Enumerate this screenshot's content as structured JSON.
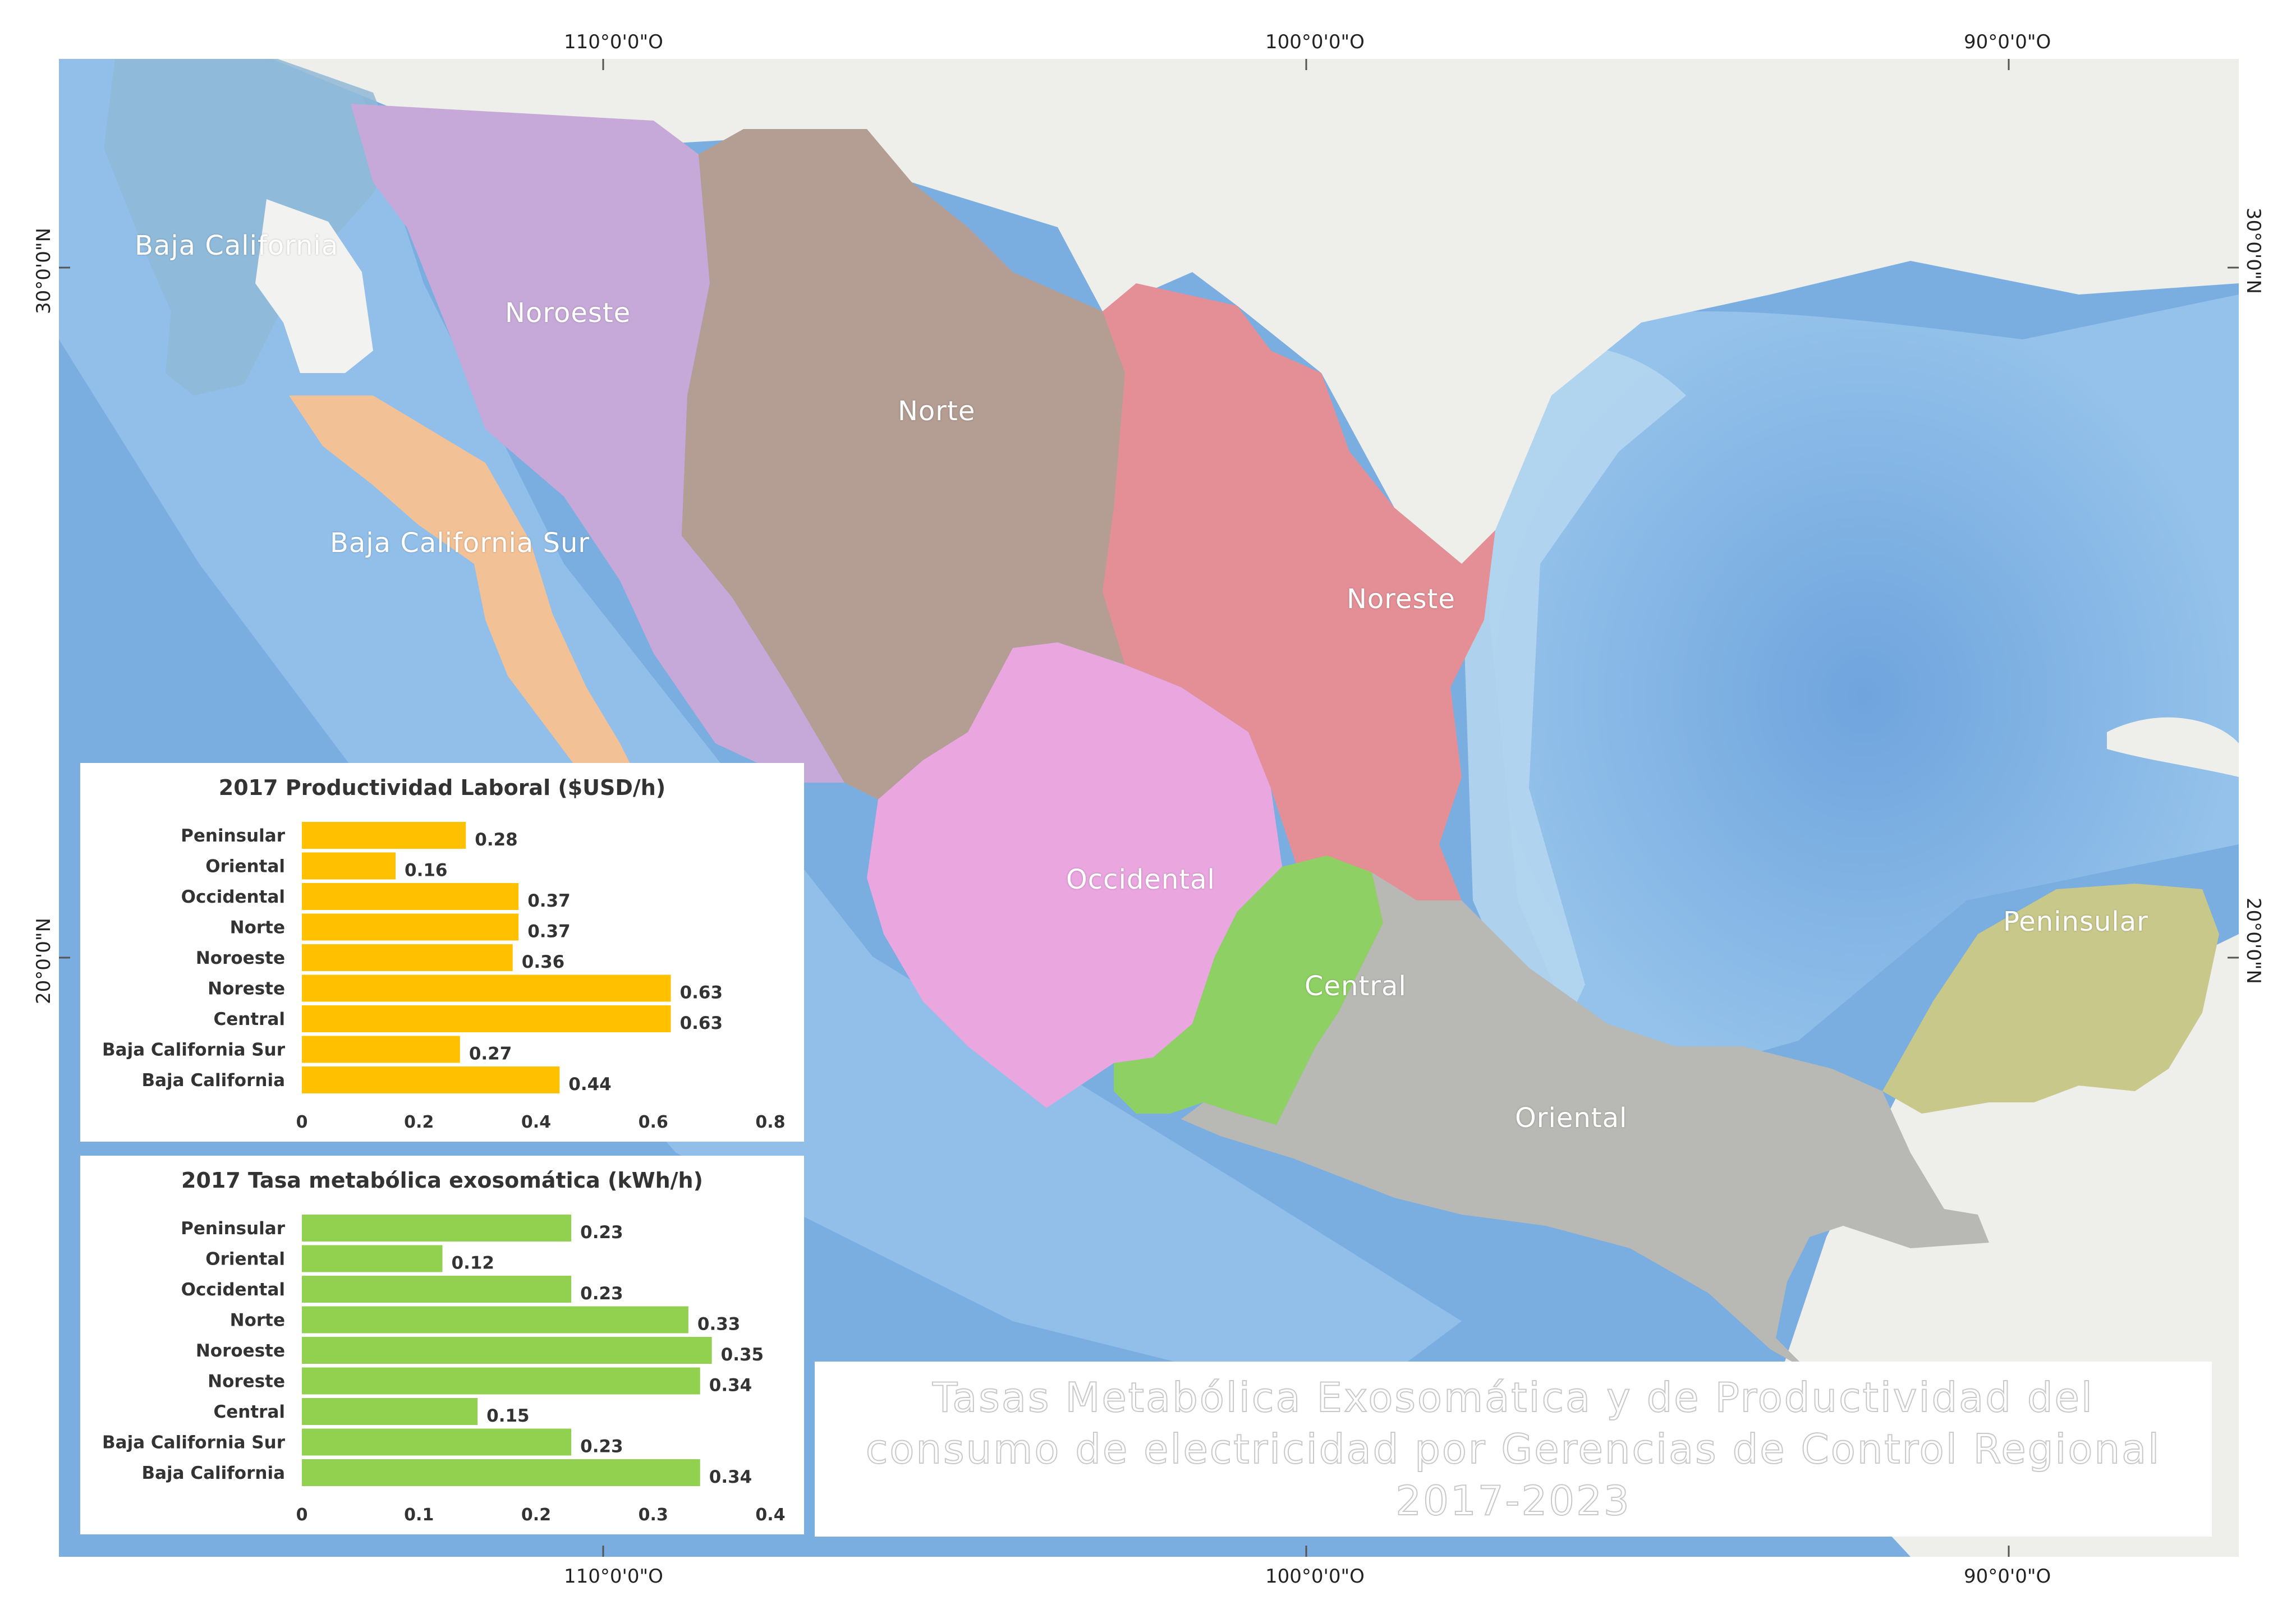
{
  "map": {
    "colors": {
      "ocean": "#7aaee0",
      "ocean_light": "#b4d6ef",
      "land": "#eeeeea",
      "baja_california": "#8fb8d6",
      "noroeste": "#c6a9d8",
      "norte": "#b49d92",
      "noreste": "#e48f96",
      "occidental": "#e9a6df",
      "central": "#8fd064",
      "oriental": "#b8b8b4",
      "peninsular": "#c8c88a",
      "baja_california_sur": "#f3c196"
    },
    "coords": {
      "top": [
        "110°0'0\"O",
        "100°0'0\"O",
        "90°0'0\"O"
      ],
      "bottom": [
        "110°0'0\"O",
        "100°0'0\"O",
        "90°0'0\"O"
      ],
      "left": [
        "30°0'0\"N",
        "20°0'0\"N"
      ],
      "right": [
        "30°0'0\"N",
        "20°0'0\"N"
      ]
    },
    "regions": {
      "baja_california": "Baja California",
      "noroeste": "Noroeste",
      "norte": "Norte",
      "baja_california_sur": "Baja California Sur",
      "noreste": "Noreste",
      "occidental": "Occidental",
      "central": "Central",
      "peninsular": "Peninsular",
      "oriental": "Oriental"
    }
  },
  "title": {
    "lines": [
      "Tasas Metabólica Exosomática y de Productividad del",
      "consumo de electricidad por Gerencias de Control Regional",
      "2017-2023"
    ]
  },
  "chart_data": [
    {
      "type": "bar",
      "orientation": "horizontal",
      "title": "2017 Productividad Laboral ($USD/h)",
      "categories": [
        "Peninsular",
        "Oriental",
        "Occidental",
        "Norte",
        "Noroeste",
        "Noreste",
        "Central",
        "Baja California Sur",
        "Baja California"
      ],
      "values": [
        0.28,
        0.16,
        0.37,
        0.37,
        0.36,
        0.63,
        0.63,
        0.27,
        0.44
      ],
      "labels": [
        "0.28",
        "0.16",
        "0.37",
        "0.37",
        "0.36",
        "0.63",
        "0.63",
        "0.27",
        "0.44"
      ],
      "xlim": [
        0,
        0.8
      ],
      "xticks": [
        "0",
        "0.2",
        "0.4",
        "0.6",
        "0.8"
      ],
      "color": "#ffc000",
      "grid": false
    },
    {
      "type": "bar",
      "orientation": "horizontal",
      "title": "2017 Tasa metabólica exosomática (kWh/h)",
      "categories": [
        "Peninsular",
        "Oriental",
        "Occidental",
        "Norte",
        "Noroeste",
        "Noreste",
        "Central",
        "Baja California Sur",
        "Baja California"
      ],
      "values": [
        0.23,
        0.12,
        0.23,
        0.33,
        0.35,
        0.34,
        0.15,
        0.23,
        0.34
      ],
      "labels": [
        "0.23",
        "0.12",
        "0.23",
        "0.33",
        "0.35",
        "0.34",
        "0.15",
        "0.23",
        "0.34"
      ],
      "xlim": [
        0,
        0.4
      ],
      "xticks": [
        "0",
        "0.1",
        "0.2",
        "0.3",
        "0.4"
      ],
      "color": "#92d050",
      "grid": false
    }
  ]
}
